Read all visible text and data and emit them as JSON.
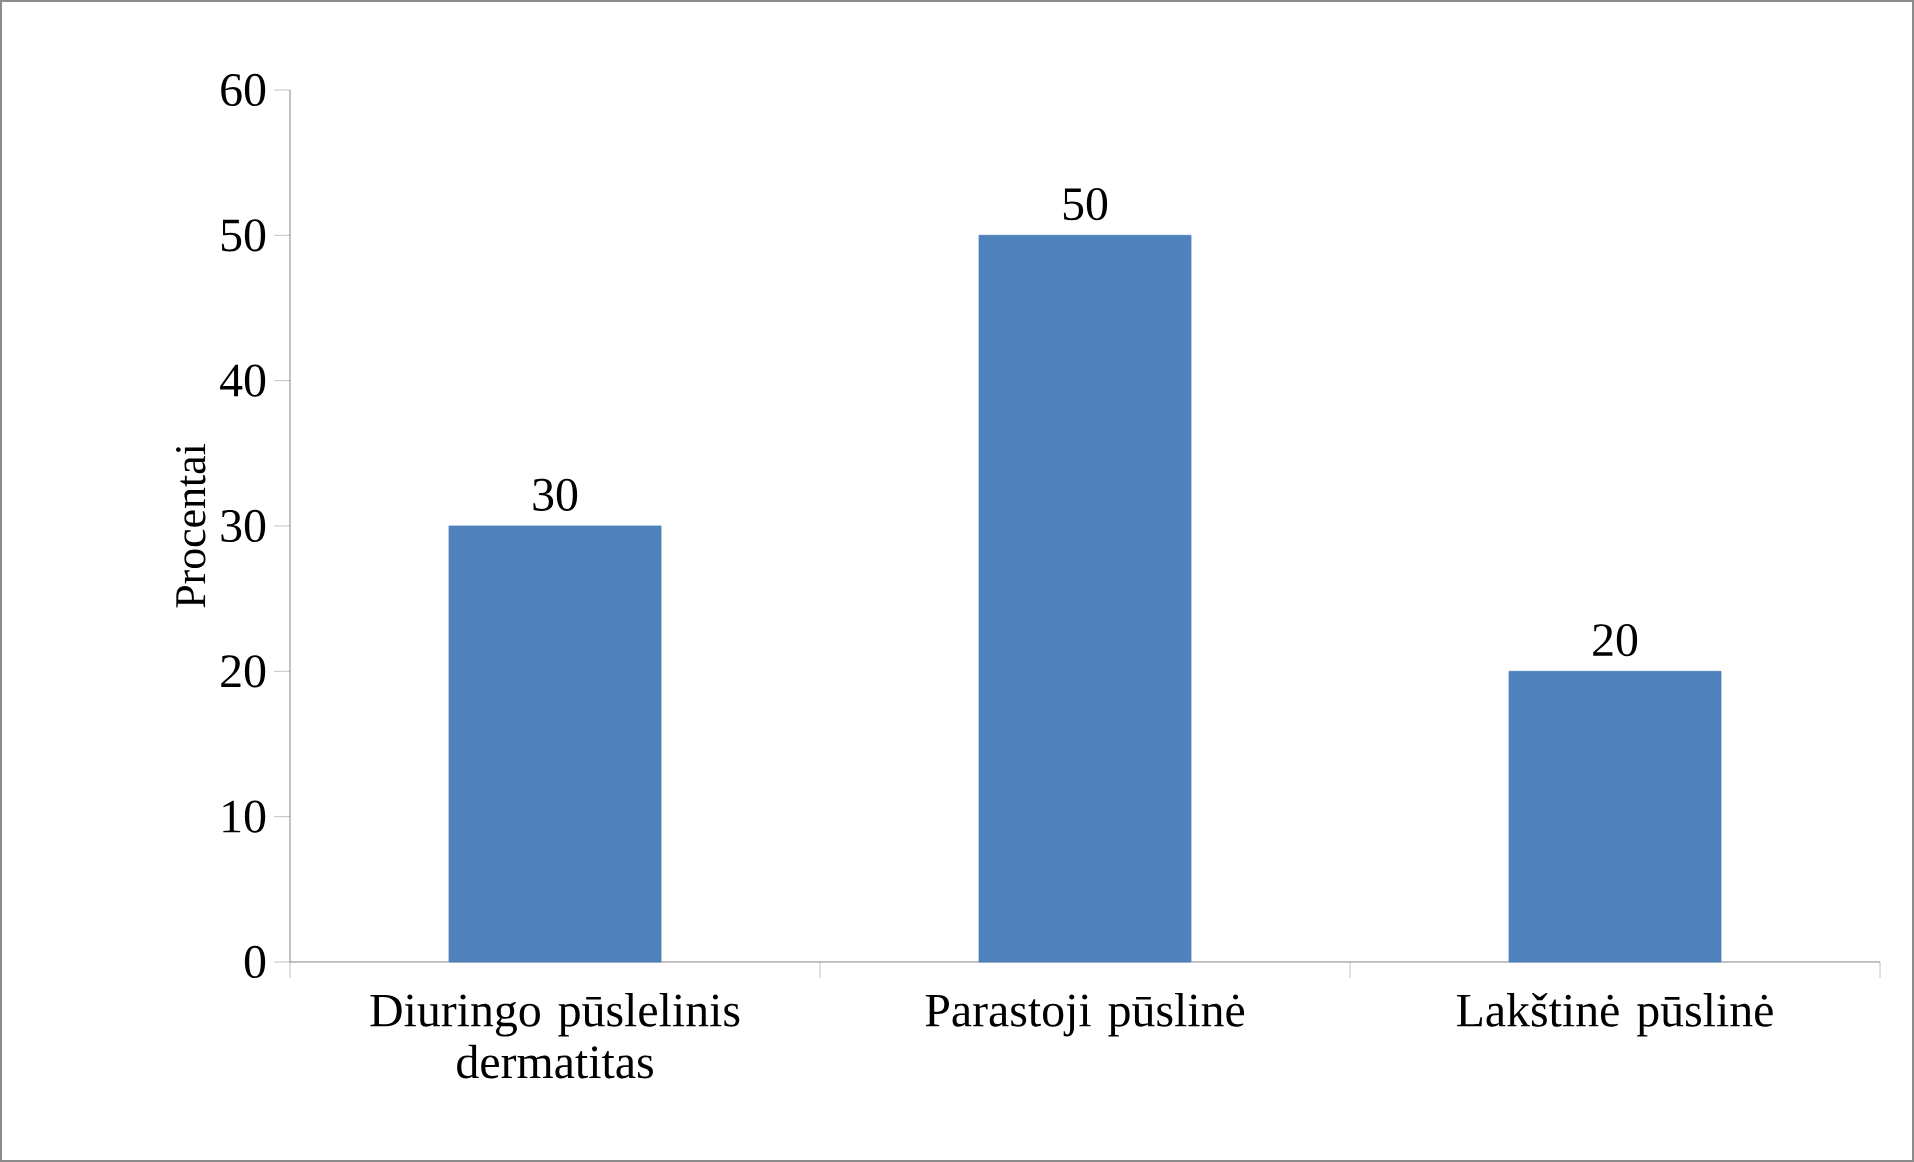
{
  "chart_data": {
    "type": "bar",
    "ylabel": "Procentai",
    "categories": [
      "Diuringo pūslelinis dermatitas",
      "Parastoji pūslinė",
      "Lakštinė pūslinė"
    ],
    "values": [
      30,
      50,
      20
    ],
    "color": "#4f81bd",
    "ylim": [
      0,
      60
    ],
    "yticks": [
      0,
      10,
      20,
      30,
      40,
      50,
      60
    ],
    "data_labels": true,
    "grid": false
  }
}
